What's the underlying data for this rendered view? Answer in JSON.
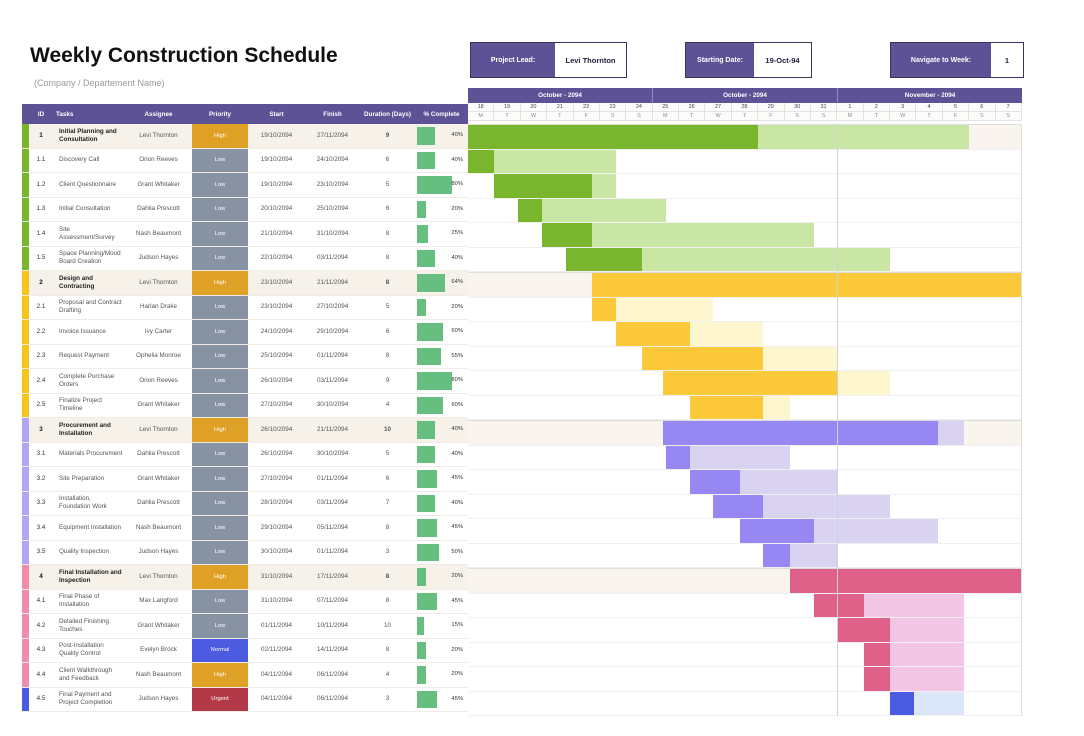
{
  "title": "Weekly Construction Schedule",
  "subtitle": "(Company / Departement Name)",
  "info": {
    "project_lead_label": "Project Lead:",
    "project_lead_value": "Levi Thornton",
    "starting_date_label": "Starting Date:",
    "starting_date_value": "19-Oct-94",
    "navigate_week_label": "Navigate to Week:",
    "navigate_week_value": "1"
  },
  "table": {
    "headers": [
      "ID",
      "Tasks",
      "Assignee",
      "Priority",
      "Start",
      "Finish",
      "Duration (Days)",
      "% Complete"
    ]
  },
  "priority_colors": {
    "High": "#dfa125",
    "Low": "#8793a3",
    "Normal": "#4d5be0",
    "Urgent": "#b23a48"
  },
  "palettes": {
    "1": {
      "accent": "#79b52d",
      "solid": "#79b52d",
      "light": "#c9e6a4"
    },
    "2": {
      "accent": "#f6c51d",
      "solid": "#fbc93a",
      "light": "#fdf6cf"
    },
    "3": {
      "accent": "#b2a5f6",
      "solid": "#9787f2",
      "light": "#d9d2f1"
    },
    "4": {
      "accent": "#f08cab",
      "solid": "#df6189",
      "light": "#f4c6e6"
    },
    "5": {
      "accent": "#4a5be0",
      "solid": "#4a5be0",
      "light": "#dbe6f8"
    }
  },
  "progress_color": "#66bf80",
  "gantt": {
    "months": [
      {
        "label": "October - 2094",
        "days": 7
      },
      {
        "label": "October - 2094",
        "days": 7
      },
      {
        "label": "November - 2094",
        "days": 7
      }
    ],
    "dates": [
      "18",
      "19",
      "20",
      "21",
      "22",
      "23",
      "24",
      "25",
      "26",
      "27",
      "28",
      "29",
      "30",
      "31",
      "1",
      "2",
      "3",
      "4",
      "5",
      "6",
      "7"
    ],
    "dows": [
      "M",
      "T",
      "W",
      "T",
      "F",
      "S",
      "S",
      "M",
      "T",
      "W",
      "T",
      "F",
      "S",
      "S",
      "M",
      "T",
      "W",
      "T",
      "F",
      "S",
      "S"
    ],
    "total_days": 21,
    "month_boundary_day": 14
  },
  "rows": [
    {
      "id": "1",
      "task": "Initial Planning and Consultation",
      "assignee": "Levi Thornton",
      "priority": "High",
      "start": "19/10/2094",
      "finish": "27/11/2094",
      "duration": "9",
      "complete": "40%",
      "pct": 40,
      "parent": true,
      "pal": "1",
      "bar": {
        "s": 0,
        "m": 11,
        "e": 19
      }
    },
    {
      "id": "1.1",
      "task": "Discovery Call",
      "assignee": "Orion Reeves",
      "priority": "Low",
      "start": "19/10/2094",
      "finish": "24/10/2094",
      "duration": "6",
      "complete": "40%",
      "pct": 40,
      "parent": false,
      "pal": "1",
      "bar": {
        "s": 0,
        "m": 1,
        "e": 5.6
      }
    },
    {
      "id": "1.2",
      "task": "Client Questionnaire",
      "assignee": "Grant Whitaker",
      "priority": "Low",
      "start": "19/10/2094",
      "finish": "23/10/2094",
      "duration": "5",
      "complete": "80%",
      "pct": 80,
      "parent": false,
      "pal": "1",
      "bar": {
        "s": 1,
        "m": 4.7,
        "e": 5.6
      }
    },
    {
      "id": "1.3",
      "task": "Initial Consultation",
      "assignee": "Dahlia Prescott",
      "priority": "Low",
      "start": "20/10/2094",
      "finish": "25/10/2094",
      "duration": "6",
      "complete": "20%",
      "pct": 20,
      "parent": false,
      "pal": "1",
      "bar": {
        "s": 1.9,
        "m": 2.8,
        "e": 7.5
      }
    },
    {
      "id": "1.4",
      "task": "Site Assessment/Survey",
      "assignee": "Nash Beaumont",
      "priority": "Low",
      "start": "21/10/2094",
      "finish": "31/10/2094",
      "duration": "8",
      "complete": "25%",
      "pct": 25,
      "parent": false,
      "pal": "1",
      "bar": {
        "s": 2.8,
        "m": 4.7,
        "e": 13.1
      }
    },
    {
      "id": "1.5",
      "task": "Space Planning/Mood Board Creation",
      "assignee": "Judson Hayes",
      "priority": "Low",
      "start": "22/10/2094",
      "finish": "03/11/2094",
      "duration": "8",
      "complete": "40%",
      "pct": 40,
      "parent": false,
      "pal": "1",
      "bar": {
        "s": 3.7,
        "m": 6.6,
        "e": 16
      }
    },
    {
      "id": "2",
      "task": "Design and Contracting",
      "assignee": "Levi Thornton",
      "priority": "High",
      "start": "23/10/2094",
      "finish": "21/11/2094",
      "duration": "8",
      "complete": "64%",
      "pct": 64,
      "parent": true,
      "pal": "2",
      "bar": {
        "s": 4.7,
        "m": 21,
        "e": 21
      }
    },
    {
      "id": "2.1",
      "task": "Proposal and Contract Drafting",
      "assignee": "Harlan Drake",
      "priority": "Low",
      "start": "23/10/2094",
      "finish": "27/10/2094",
      "duration": "5",
      "complete": "20%",
      "pct": 20,
      "parent": false,
      "pal": "2",
      "bar": {
        "s": 4.7,
        "m": 5.6,
        "e": 9.3
      }
    },
    {
      "id": "2.2",
      "task": "Invoice Issuance",
      "assignee": "Ivy Carter",
      "priority": "Low",
      "start": "24/10/2094",
      "finish": "29/10/2094",
      "duration": "6",
      "complete": "60%",
      "pct": 60,
      "parent": false,
      "pal": "2",
      "bar": {
        "s": 5.6,
        "m": 8.4,
        "e": 11.2
      }
    },
    {
      "id": "2.3",
      "task": "Request Payment",
      "assignee": "Ophelia Monroe",
      "priority": "Low",
      "start": "25/10/2094",
      "finish": "01/11/2094",
      "duration": "8",
      "complete": "55%",
      "pct": 55,
      "parent": false,
      "pal": "2",
      "bar": {
        "s": 6.6,
        "m": 11.2,
        "e": 14
      }
    },
    {
      "id": "2.4",
      "task": "Complete Purchase Orders",
      "assignee": "Orion Reeves",
      "priority": "Low",
      "start": "26/10/2094",
      "finish": "03/11/2094",
      "duration": "9",
      "complete": "80%",
      "pct": 80,
      "parent": false,
      "pal": "2",
      "bar": {
        "s": 7.4,
        "m": 14,
        "e": 16
      }
    },
    {
      "id": "2.5",
      "task": "Finalize Project Timeline",
      "assignee": "Grant Whitaker",
      "priority": "Low",
      "start": "27/10/2094",
      "finish": "30/10/2094",
      "duration": "4",
      "complete": "60%",
      "pct": 60,
      "parent": false,
      "pal": "2",
      "bar": {
        "s": 8.4,
        "m": 11.2,
        "e": 12.2
      }
    },
    {
      "id": "3",
      "task": "Procurement and Installation",
      "assignee": "Levi Thornton",
      "priority": "High",
      "start": "26/10/2094",
      "finish": "21/11/2094",
      "duration": "10",
      "complete": "40%",
      "pct": 40,
      "parent": true,
      "pal": "3",
      "bar": {
        "s": 7.4,
        "m": 17.8,
        "e": 18.8
      }
    },
    {
      "id": "3.1",
      "task": "Materials Procurement",
      "assignee": "Dahlia Prescott",
      "priority": "Low",
      "start": "26/10/2094",
      "finish": "30/10/2094",
      "duration": "5",
      "complete": "40%",
      "pct": 40,
      "parent": false,
      "pal": "3",
      "bar": {
        "s": 7.5,
        "m": 8.4,
        "e": 12.2
      }
    },
    {
      "id": "3.2",
      "task": "Site Preparation",
      "assignee": "Grant Whitaker",
      "priority": "Low",
      "start": "27/10/2094",
      "finish": "01/11/2094",
      "duration": "6",
      "complete": "45%",
      "pct": 45,
      "parent": false,
      "pal": "3",
      "bar": {
        "s": 8.4,
        "m": 10.3,
        "e": 14
      }
    },
    {
      "id": "3.3",
      "task": "Installation, Foundation Work",
      "assignee": "Dahlia Prescott",
      "priority": "Low",
      "start": "28/10/2094",
      "finish": "03/11/2094",
      "duration": "7",
      "complete": "40%",
      "pct": 40,
      "parent": false,
      "pal": "3",
      "bar": {
        "s": 9.3,
        "m": 11.2,
        "e": 16
      }
    },
    {
      "id": "3.4",
      "task": "Equipment Installation",
      "assignee": "Nash Beaumont",
      "priority": "Low",
      "start": "29/10/2094",
      "finish": "05/11/2094",
      "duration": "8",
      "complete": "45%",
      "pct": 45,
      "parent": false,
      "pal": "3",
      "bar": {
        "s": 10.3,
        "m": 13.1,
        "e": 17.8
      }
    },
    {
      "id": "3.5",
      "task": "Quality Inspection",
      "assignee": "Judson Hayes",
      "priority": "Low",
      "start": "30/10/2094",
      "finish": "01/11/2094",
      "duration": "3",
      "complete": "50%",
      "pct": 50,
      "parent": false,
      "pal": "3",
      "bar": {
        "s": 11.2,
        "m": 12.2,
        "e": 14
      }
    },
    {
      "id": "4",
      "task": "Final Installation and Inspection",
      "assignee": "Levi Thornton",
      "priority": "High",
      "start": "31/10/2094",
      "finish": "17/11/2094",
      "duration": "8",
      "complete": "20%",
      "pct": 20,
      "parent": true,
      "pal": "4",
      "bar": {
        "s": 12.2,
        "m": 21,
        "e": 21
      }
    },
    {
      "id": "4.1",
      "task": "Final Phase of Installation",
      "assignee": "Max Langford",
      "priority": "Low",
      "start": "31/10/2094",
      "finish": "07/11/2094",
      "duration": "8",
      "complete": "45%",
      "pct": 45,
      "parent": false,
      "pal": "4",
      "bar": {
        "s": 13.1,
        "m": 15,
        "e": 18.8
      }
    },
    {
      "id": "4.2",
      "task": "Detailed Finishing Touches",
      "assignee": "Grant Whitaker",
      "priority": "Low",
      "start": "01/11/2094",
      "finish": "10/11/2094",
      "duration": "10",
      "complete": "15%",
      "pct": 15,
      "parent": false,
      "pal": "4",
      "bar": {
        "s": 14,
        "m": 16,
        "e": 18.8
      }
    },
    {
      "id": "4.3",
      "task": "Post-Installation Quality Control",
      "assignee": "Evelyn Brock",
      "priority": "Normal",
      "start": "02/11/2094",
      "finish": "14/11/2094",
      "duration": "8",
      "complete": "20%",
      "pct": 20,
      "parent": false,
      "pal": "4",
      "bar": {
        "s": 15,
        "m": 16,
        "e": 18.8
      }
    },
    {
      "id": "4.4",
      "task": "Client Walkthrough and Feedback",
      "assignee": "Nash Beaumont",
      "priority": "High",
      "start": "04/11/2094",
      "finish": "06/11/2094",
      "duration": "4",
      "complete": "20%",
      "pct": 20,
      "parent": false,
      "pal": "4",
      "bar": {
        "s": 15,
        "m": 16,
        "e": 18.8
      }
    },
    {
      "id": "4.5",
      "task": "Final Payment and Project Completion",
      "assignee": "Judson Hayes",
      "priority": "Urgent",
      "start": "04/11/2094",
      "finish": "06/11/2094",
      "duration": "3",
      "complete": "45%",
      "pct": 45,
      "parent": false,
      "pal": "5",
      "bar": {
        "s": 16,
        "m": 16.9,
        "e": 18.8
      }
    }
  ]
}
